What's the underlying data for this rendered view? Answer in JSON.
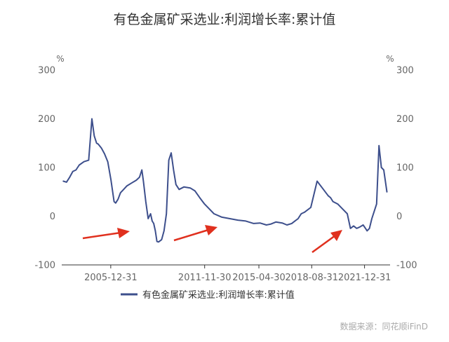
{
  "chart_data": {
    "type": "line",
    "title": "有色金属矿采选业:利润增长率:累计值",
    "unit_left": "%",
    "unit_right": "%",
    "ylim": [
      -100,
      300
    ],
    "yticks": [
      "300",
      "200",
      "100",
      "0",
      "-100"
    ],
    "ytick_values": [
      300,
      200,
      100,
      0,
      -100
    ],
    "xtick_labels": [
      "2005-12-31",
      "2011-11-30",
      "2015-04-30",
      "2018-08-31",
      "2021-12-31"
    ],
    "xtick_values": [
      2005.99,
      2011.91,
      2015.33,
      2018.66,
      2021.99
    ],
    "xlim": [
      2002.9,
      2023.6
    ],
    "legend_position": "bottom",
    "grid": false,
    "series": [
      {
        "name": "有色金属矿采选业:利润增长率:累计值",
        "color": "#3d4f8c",
        "x": [
          2003.0,
          2003.2,
          2003.4,
          2003.6,
          2003.8,
          2004.0,
          2004.3,
          2004.6,
          2004.8,
          2004.95,
          2005.1,
          2005.2,
          2005.4,
          2005.6,
          2005.8,
          2006.0,
          2006.2,
          2006.3,
          2006.45,
          2006.6,
          2006.8,
          2007.0,
          2007.3,
          2007.6,
          2007.8,
          2007.95,
          2008.05,
          2008.2,
          2008.35,
          2008.5,
          2008.6,
          2008.7,
          2008.8,
          2008.9,
          2009.0,
          2009.2,
          2009.35,
          2009.5,
          2009.65,
          2009.8,
          2009.95,
          2010.1,
          2010.3,
          2010.6,
          2011.0,
          2011.3,
          2011.6,
          2011.9,
          2012.2,
          2012.5,
          2013.0,
          2013.5,
          2014.0,
          2014.5,
          2015.0,
          2015.4,
          2015.8,
          2016.1,
          2016.4,
          2016.8,
          2017.1,
          2017.4,
          2017.6,
          2017.8,
          2017.9,
          2018.0,
          2018.2,
          2018.6,
          2019.0,
          2019.4,
          2019.7,
          2019.85,
          2020.0,
          2020.3,
          2020.6,
          2020.9,
          2021.1,
          2021.3,
          2021.5,
          2021.7,
          2021.9,
          2022.05,
          2022.15,
          2022.3,
          2022.45,
          2022.6,
          2022.75,
          2022.9,
          2023.05,
          2023.2,
          2023.4
        ],
        "values": [
          72,
          70,
          80,
          92,
          95,
          105,
          112,
          115,
          200,
          165,
          150,
          148,
          140,
          128,
          112,
          75,
          30,
          27,
          35,
          48,
          55,
          62,
          68,
          74,
          80,
          95,
          72,
          30,
          -5,
          5,
          -10,
          -15,
          -30,
          -52,
          -53,
          -48,
          -30,
          5,
          115,
          130,
          95,
          65,
          55,
          60,
          58,
          52,
          38,
          25,
          15,
          5,
          -2,
          -5,
          -8,
          -10,
          -15,
          -14,
          -18,
          -16,
          -12,
          -14,
          -18,
          -15,
          -10,
          -5,
          0,
          5,
          8,
          18,
          72,
          55,
          42,
          38,
          30,
          25,
          15,
          5,
          -25,
          -20,
          -25,
          -22,
          -18,
          -25,
          -30,
          -25,
          -5,
          10,
          25,
          145,
          100,
          95,
          50
        ]
      }
    ],
    "source": "数据来源：同花顺iFinD"
  }
}
